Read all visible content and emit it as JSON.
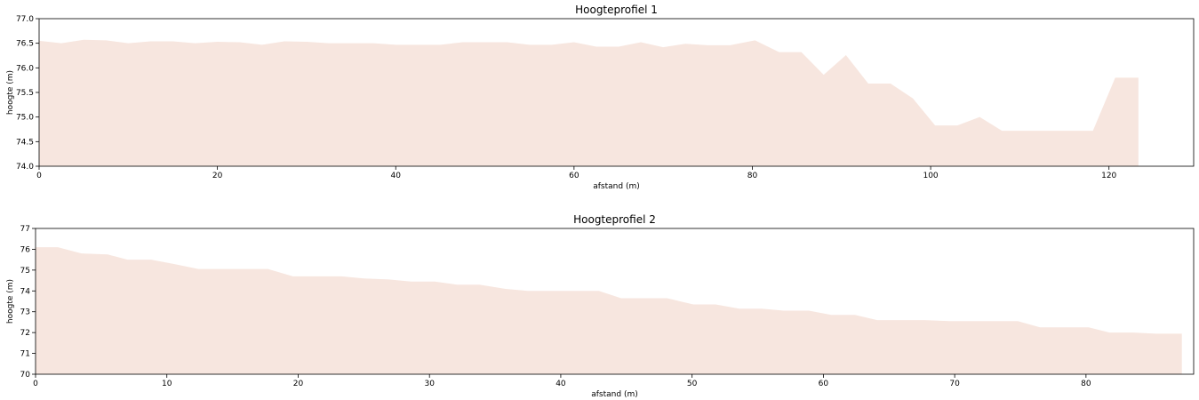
{
  "colors": {
    "fill": "#f7e6df",
    "axis": "#000000"
  },
  "chart_data": [
    {
      "type": "area",
      "title": "Hoogteprofiel 1",
      "xlabel": "afstand (m)",
      "ylabel": "hoogte (m)",
      "xlim": [
        0,
        129.5
      ],
      "ylim": [
        74.0,
        77.0
      ],
      "xticks": [
        0,
        20,
        40,
        60,
        80,
        100,
        120
      ],
      "yticks": [
        "74.0",
        "74.5",
        "75.0",
        "75.5",
        "76.0",
        "76.5",
        "77.0"
      ],
      "grid": false,
      "x": [
        0,
        2.5,
        5,
        7.5,
        10,
        12.5,
        15,
        17.5,
        20,
        22.5,
        25,
        27.5,
        30,
        32.5,
        35,
        37.5,
        40,
        42.5,
        45,
        47.5,
        50,
        52.5,
        55,
        57.5,
        60,
        62.5,
        65,
        67.5,
        70,
        72.5,
        75,
        77.5,
        80.3,
        83,
        85.5,
        88,
        90.5,
        93,
        95.5,
        98,
        100.5,
        103,
        105.5,
        108,
        110.5,
        113,
        115.5,
        118.2,
        120.7,
        123.3
      ],
      "y": [
        76.55,
        76.5,
        76.57,
        76.56,
        76.5,
        76.54,
        76.54,
        76.5,
        76.53,
        76.52,
        76.47,
        76.54,
        76.53,
        76.5,
        76.5,
        76.5,
        76.47,
        76.47,
        76.47,
        76.52,
        76.52,
        76.52,
        76.47,
        76.47,
        76.52,
        76.43,
        76.43,
        76.52,
        76.42,
        76.49,
        76.46,
        76.46,
        76.56,
        76.32,
        76.32,
        75.86,
        76.26,
        75.68,
        75.68,
        75.38,
        74.83,
        74.83,
        75.0,
        74.72,
        74.72,
        74.72,
        74.72,
        74.72,
        75.8,
        75.8
      ]
    },
    {
      "type": "area",
      "title": "Hoogteprofiel 2",
      "xlabel": "afstand (m)",
      "ylabel": "hoogte (m)",
      "xlim": [
        0,
        88.2
      ],
      "ylim": [
        70,
        77
      ],
      "xticks": [
        0,
        10,
        20,
        30,
        40,
        50,
        60,
        70,
        80
      ],
      "yticks": [
        "70",
        "71",
        "72",
        "73",
        "74",
        "75",
        "76",
        "77"
      ],
      "grid": false,
      "x": [
        0,
        1.7,
        3.5,
        5.5,
        7,
        8.8,
        10.5,
        12.4,
        14.2,
        16.3,
        17.7,
        19.6,
        21.4,
        23.3,
        25,
        26.9,
        28.6,
        30.4,
        32.1,
        33.8,
        35.8,
        37.5,
        39.3,
        41.1,
        42.9,
        44.6,
        46.4,
        48.1,
        50.1,
        51.8,
        53.6,
        55.3,
        57,
        58.9,
        60.6,
        62.4,
        64.1,
        66.1,
        67.7,
        69.6,
        71.3,
        73.1,
        74.8,
        76.5,
        78.4,
        80.2,
        81.8,
        83.6,
        85.3,
        87.3
      ],
      "y": [
        76.1,
        76.1,
        75.8,
        75.75,
        75.5,
        75.5,
        75.3,
        75.05,
        75.05,
        75.05,
        75.05,
        74.7,
        74.7,
        74.7,
        74.6,
        74.55,
        74.45,
        74.45,
        74.3,
        74.3,
        74.1,
        74.0,
        74.0,
        74.0,
        74.0,
        73.65,
        73.65,
        73.65,
        73.35,
        73.35,
        73.15,
        73.15,
        73.05,
        73.05,
        72.85,
        72.85,
        72.6,
        72.6,
        72.6,
        72.55,
        72.55,
        72.55,
        72.55,
        72.25,
        72.25,
        72.25,
        72.0,
        72.0,
        71.95,
        71.95
      ]
    }
  ]
}
